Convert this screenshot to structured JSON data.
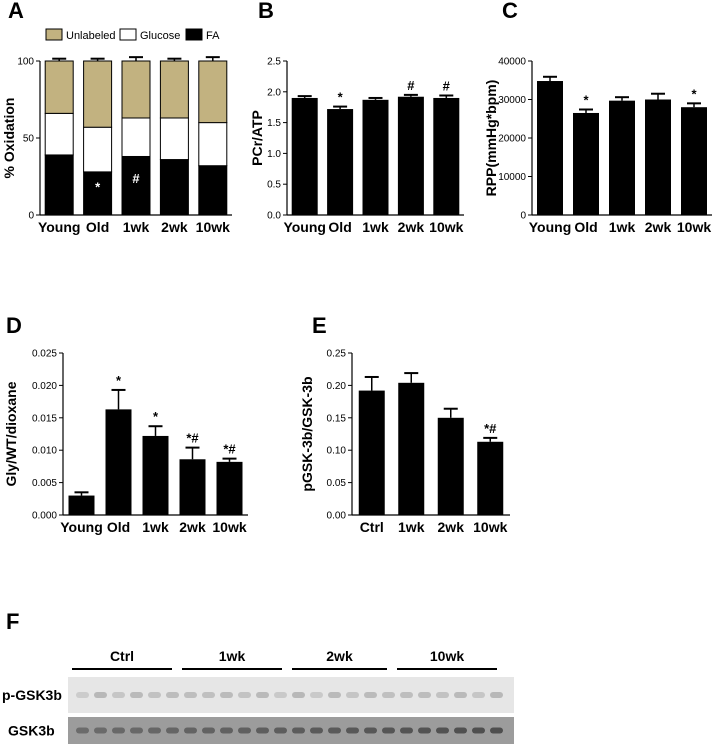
{
  "chart_data": [
    {
      "panel": "A",
      "type": "bar",
      "stacked": true,
      "categories": [
        "Young",
        "Old",
        "1wk",
        "2wk",
        "10wk"
      ],
      "ylabel": "% Oxidation",
      "ylim": [
        0,
        100
      ],
      "yticks": [
        0,
        50,
        100
      ],
      "legend": [
        "Unlabeled",
        "Glucose",
        "FA"
      ],
      "series": [
        {
          "name": "FA",
          "color": "#000000",
          "values": [
            39,
            28,
            38,
            36,
            32
          ],
          "errors": [
            1.5,
            1.5,
            2.5,
            2.5,
            2.5
          ]
        },
        {
          "name": "Glucose",
          "color": "#ffffff",
          "values": [
            27,
            29,
            25,
            27,
            28
          ],
          "errors": [
            1.5,
            1.5,
            1.5,
            2.5,
            1.5
          ]
        },
        {
          "name": "Unlabeled",
          "color": "#c2b280",
          "values": [
            34,
            43,
            37,
            37,
            40
          ],
          "errors": [
            1.5,
            1.5,
            2.5,
            1.5,
            2.5
          ]
        }
      ],
      "annotations": [
        {
          "category": "Old",
          "text": "*",
          "color": "#ffffff"
        },
        {
          "category": "1wk",
          "text": "#",
          "color": "#ffffff"
        }
      ]
    },
    {
      "panel": "B",
      "type": "bar",
      "categories": [
        "Young",
        "Old",
        "1wk",
        "2wk",
        "10wk"
      ],
      "ylabel": "PCr/ATP",
      "ylim": [
        0,
        2.5
      ],
      "yticks": [
        "0.0",
        "0.5",
        "1.0",
        "1.5",
        "2.0",
        "2.5"
      ],
      "values": [
        1.9,
        1.72,
        1.87,
        1.92,
        1.9
      ],
      "errors": [
        0.03,
        0.04,
        0.03,
        0.03,
        0.04
      ],
      "annotations": [
        {
          "category": "Old",
          "text": "*"
        },
        {
          "category": "2wk",
          "text": "#"
        },
        {
          "category": "10wk",
          "text": "#"
        }
      ]
    },
    {
      "panel": "C",
      "type": "bar",
      "categories": [
        "Young",
        "Old",
        "1wk",
        "2wk",
        "10wk"
      ],
      "ylabel": "RPP(mmHg*bpm)",
      "ylim": [
        0,
        40000
      ],
      "yticks": [
        "0",
        "10000",
        "20000",
        "30000",
        "40000"
      ],
      "values": [
        34800,
        26500,
        29700,
        30000,
        28000
      ],
      "errors": [
        1100,
        900,
        900,
        1500,
        1000
      ],
      "annotations": [
        {
          "category": "Old",
          "text": "*"
        },
        {
          "category": "10wk",
          "text": "*"
        }
      ]
    },
    {
      "panel": "D",
      "type": "bar",
      "categories": [
        "Young",
        "Old",
        "1wk",
        "2wk",
        "10wk"
      ],
      "ylabel": "Gly/WT/dioxane",
      "ylim": [
        0,
        0.025
      ],
      "yticks": [
        "0.000",
        "0.005",
        "0.010",
        "0.015",
        "0.020",
        "0.025"
      ],
      "values": [
        0.003,
        0.0163,
        0.0122,
        0.0086,
        0.0082
      ],
      "errors": [
        0.0005,
        0.003,
        0.0015,
        0.0018,
        0.0005
      ],
      "annotations": [
        {
          "category": "Old",
          "text": "*"
        },
        {
          "category": "1wk",
          "text": "*"
        },
        {
          "category": "2wk",
          "text": "*#"
        },
        {
          "category": "10wk",
          "text": "*#"
        }
      ]
    },
    {
      "panel": "E",
      "type": "bar",
      "categories": [
        "Ctrl",
        "1wk",
        "2wk",
        "10wk"
      ],
      "ylabel": "pGSK-3b/GSK-3b",
      "ylim": [
        0,
        0.25
      ],
      "yticks": [
        "0.00",
        "0.05",
        "0.10",
        "0.15",
        "0.20",
        "0.25"
      ],
      "values": [
        0.192,
        0.204,
        0.15,
        0.113
      ],
      "errors": [
        0.021,
        0.015,
        0.014,
        0.006
      ],
      "annotations": [
        {
          "category": "10wk",
          "text": "*#"
        }
      ]
    }
  ],
  "blot": {
    "panel": "F",
    "groups": [
      "Ctrl",
      "1wk",
      "2wk",
      "10wk"
    ],
    "rows": [
      "p-GSK3b",
      "GSK3b"
    ]
  }
}
